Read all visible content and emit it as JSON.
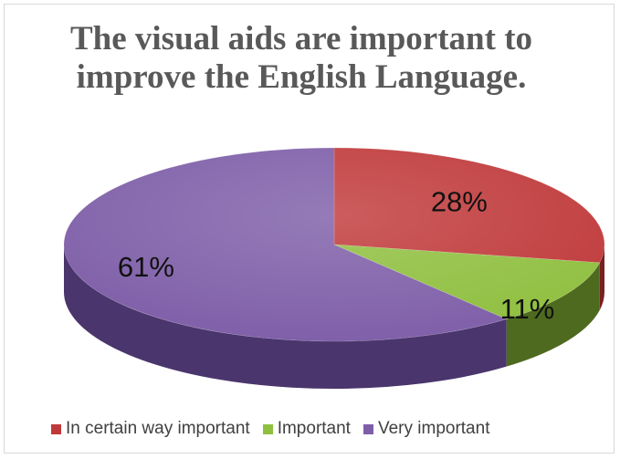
{
  "chart_data": {
    "type": "pie",
    "title_lines": [
      "The visual aids are important to",
      "improve the English Language."
    ],
    "categories": [
      "In certain way important",
      "Important",
      "Very important"
    ],
    "values": [
      28,
      11,
      61
    ],
    "data_labels": [
      "28%",
      "11%",
      "61%"
    ],
    "colors": [
      "#c0393a",
      "#8fbf3f",
      "#7e5ea8"
    ],
    "side_colors": [
      "#7a1f1f",
      "#4e6a1f",
      "#4a356c"
    ],
    "legend_position": "bottom",
    "three_d": true
  }
}
